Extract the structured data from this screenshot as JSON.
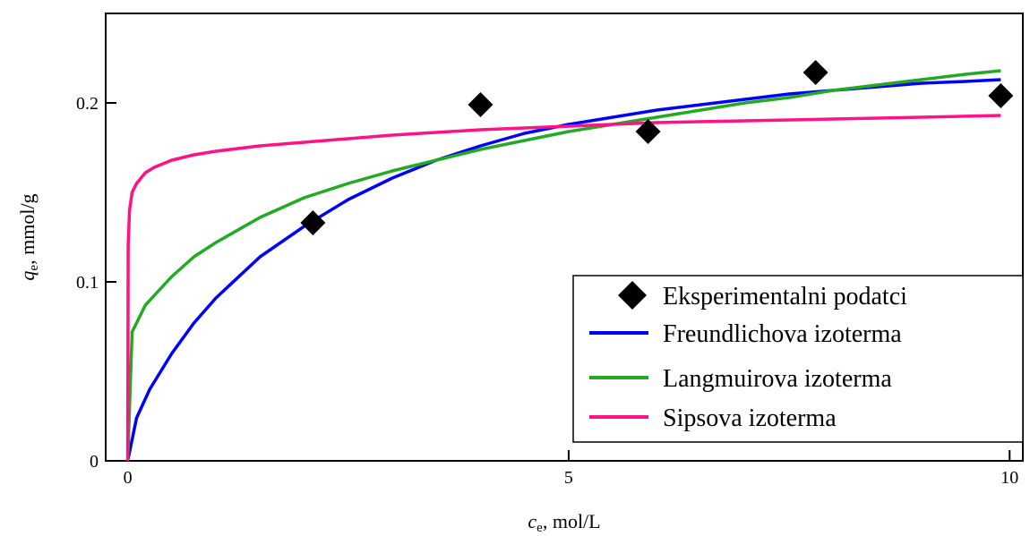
{
  "chart_data": {
    "type": "scatter",
    "x_axis": {
      "label_main": "c",
      "label_sub": "e",
      "label_unit": ", mol/L",
      "range": [
        -0.25,
        10.15
      ],
      "ticks": [
        0,
        5,
        10
      ],
      "tick_labels": [
        "0",
        "5",
        "10"
      ]
    },
    "y_axis": {
      "label_main": "q",
      "label_sub": "e",
      "label_unit": ", mmol/g",
      "range": [
        0,
        0.25
      ],
      "ticks": [
        0,
        0.1,
        0.2
      ],
      "tick_labels": [
        "0",
        "0.1",
        "0.2"
      ]
    },
    "grid": false,
    "legend_position": "bottom-right",
    "series": [
      {
        "name": "Eksperimentalni podatci",
        "type": "scatter",
        "marker": "diamond",
        "color": "#000000",
        "x": [
          2.1,
          4.0,
          5.9,
          7.8,
          9.9
        ],
        "y": [
          0.133,
          0.199,
          0.184,
          0.217,
          0.204
        ]
      },
      {
        "name": "Freundlichova izoterma",
        "type": "line",
        "color": "#0000ff",
        "x": [
          0,
          0.1,
          0.25,
          0.5,
          0.75,
          1,
          1.5,
          2,
          2.5,
          3,
          3.5,
          4,
          4.5,
          5,
          5.5,
          6,
          6.5,
          7,
          7.5,
          8,
          8.5,
          9,
          9.5,
          9.9
        ],
        "y": [
          0,
          0.024,
          0.04,
          0.06,
          0.077,
          0.091,
          0.114,
          0.131,
          0.146,
          0.158,
          0.168,
          0.176,
          0.183,
          0.188,
          0.192,
          0.196,
          0.199,
          0.202,
          0.205,
          0.207,
          0.209,
          0.211,
          0.212,
          0.213
        ]
      },
      {
        "name": "Langmuirova izoterma",
        "type": "line",
        "color": "#22aa22",
        "x": [
          0,
          0.05,
          0.2,
          0.5,
          0.75,
          1,
          1.5,
          2,
          2.5,
          3,
          3.5,
          4,
          4.5,
          5,
          5.5,
          6,
          6.5,
          7,
          7.5,
          8,
          8.5,
          9,
          9.5,
          9.9
        ],
        "y": [
          0,
          0.072,
          0.087,
          0.103,
          0.114,
          0.122,
          0.136,
          0.147,
          0.155,
          0.162,
          0.168,
          0.174,
          0.179,
          0.184,
          0.188,
          0.192,
          0.196,
          0.2,
          0.203,
          0.207,
          0.21,
          0.213,
          0.216,
          0.218
        ]
      },
      {
        "name": "Sipsova izoterma",
        "type": "line",
        "color": "#ff1188",
        "x": [
          0,
          0.005,
          0.02,
          0.05,
          0.1,
          0.2,
          0.3,
          0.5,
          0.75,
          1,
          1.5,
          2,
          2.5,
          3,
          4,
          5,
          6,
          7,
          8,
          9,
          9.9
        ],
        "y": [
          0,
          0.12,
          0.14,
          0.15,
          0.155,
          0.161,
          0.164,
          0.168,
          0.171,
          0.173,
          0.176,
          0.178,
          0.18,
          0.182,
          0.185,
          0.187,
          0.189,
          0.19,
          0.191,
          0.192,
          0.193
        ]
      }
    ]
  }
}
